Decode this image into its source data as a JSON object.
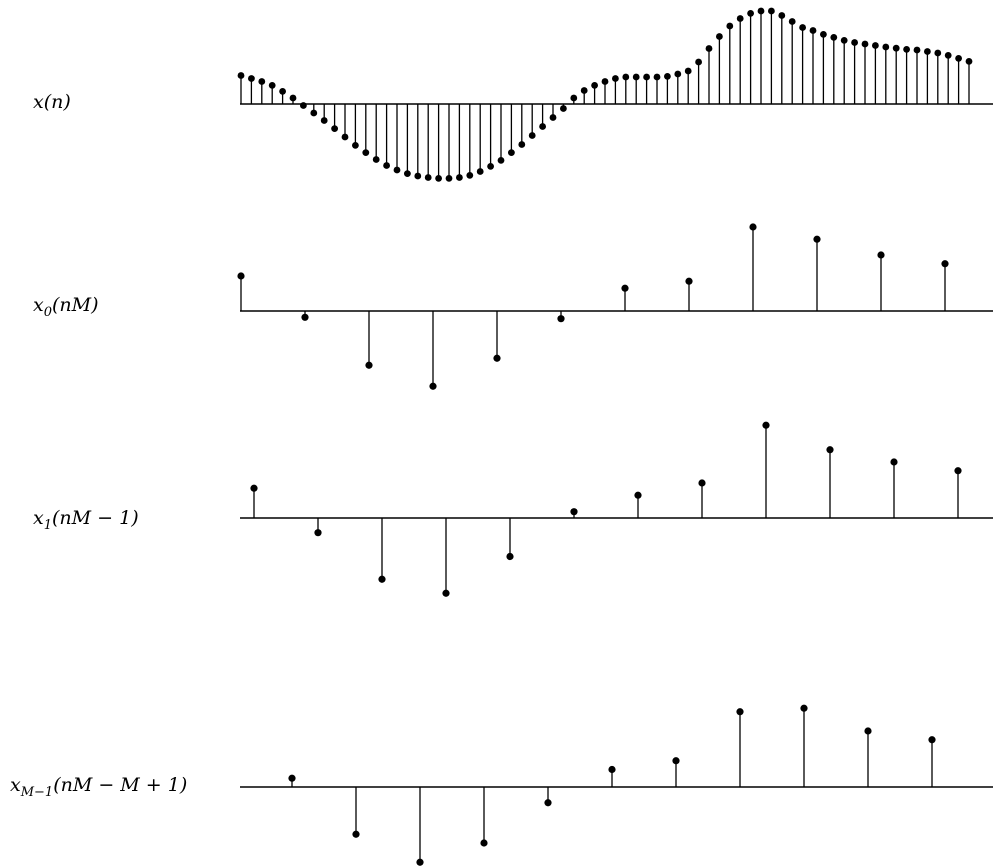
{
  "panels": [
    {
      "label": "x(n)",
      "label_parts": {
        "main": "x",
        "sub": "",
        "arg": "(n)"
      },
      "values": [
        0.95,
        0.85,
        0.75,
        0.62,
        0.42,
        0.2,
        -0.05,
        -0.3,
        -0.55,
        -0.82,
        -1.1,
        -1.38,
        -1.62,
        -1.85,
        -2.05,
        -2.2,
        -2.32,
        -2.4,
        -2.45,
        -2.48,
        -2.48,
        -2.45,
        -2.38,
        -2.25,
        -2.08,
        -1.88,
        -1.62,
        -1.35,
        -1.05,
        -0.75,
        -0.45,
        -0.15,
        0.2,
        0.45,
        0.62,
        0.75,
        0.85,
        0.9,
        0.9,
        0.9,
        0.9,
        0.92,
        1.0,
        1.1,
        1.4,
        1.85,
        2.25,
        2.6,
        2.85,
        3.02,
        3.1,
        3.1,
        2.95,
        2.75,
        2.55,
        2.45,
        2.32,
        2.22,
        2.12,
        2.05,
        2.0,
        1.95,
        1.9,
        1.86,
        1.82,
        1.8,
        1.75,
        1.7,
        1.62,
        1.52,
        1.42
      ]
    },
    {
      "label": "x0(nM)",
      "label_parts": {
        "main": "x",
        "sub": "0",
        "arg": "(nM)"
      },
      "values": [
        1.0,
        -0.18,
        -1.55,
        -2.15,
        -1.35,
        -0.22,
        0.65,
        0.85,
        2.4,
        2.05,
        1.6,
        1.35
      ]
    },
    {
      "label": "x1(nM − 1)",
      "label_parts": {
        "main": "x",
        "sub": "1",
        "arg": "(nM − 1)"
      },
      "values": [
        0.85,
        -0.42,
        -1.75,
        -2.15,
        -1.1,
        0.18,
        0.65,
        1.0,
        2.65,
        1.95,
        1.6,
        1.35
      ]
    },
    {
      "label": "xM−1(nM − M + 1)",
      "label_parts": {
        "main": "x",
        "sub": "M−1",
        "arg": "(nM − M + 1)"
      },
      "values": [
        0.25,
        -1.35,
        -2.15,
        -1.6,
        -0.45,
        0.5,
        0.75,
        2.15,
        2.25,
        1.6,
        1.35
      ]
    }
  ]
}
